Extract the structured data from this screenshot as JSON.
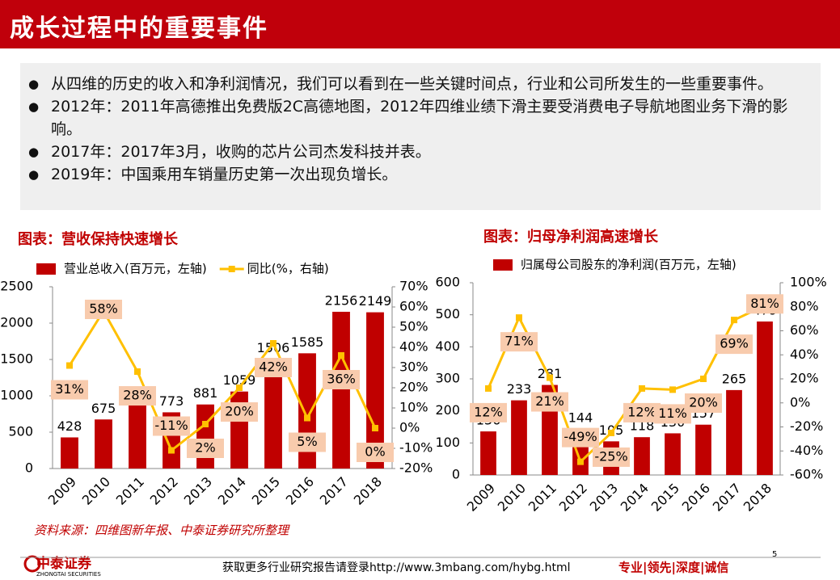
{
  "header": {
    "title": "成长过程中的重要事件"
  },
  "bullets": [
    "从四维的历史的收入和净利润情况，我们可以看到在一些关键时间点，行业和公司所发生的一些重要事件。",
    "2012年：2011年高德推出免费版2C高德地图，2012年四维业绩下滑主要受消费电子导航地图业务下滑的影响。",
    "2017年：2017年3月，收购的芯片公司杰发科技并表。",
    "2019年：中国乘用车销量历史第一次出现负增长。"
  ],
  "chart_data": [
    {
      "type": "bar-line",
      "title": "图表：营收保持快速增长",
      "categories": [
        "2009",
        "2010",
        "2011",
        "2012",
        "2013",
        "2014",
        "2015",
        "2016",
        "2017",
        "2018"
      ],
      "series": [
        {
          "name": "营业总收入(百万元，左轴)",
          "color": "#c00000",
          "values": [
            428,
            675,
            867,
            773,
            881,
            1059,
            1506,
            1585,
            2156,
            2149
          ]
        },
        {
          "name": "同比(%，右轴)",
          "color": "#ffc000",
          "axis": "y2",
          "values": [
            31,
            58,
            28,
            -11,
            2,
            20,
            42,
            5,
            36,
            0
          ],
          "value_labels": [
            "31%",
            "58%",
            "28%",
            "-11%",
            "2%",
            "20%",
            "42%",
            "5%",
            "36%",
            "0%"
          ]
        }
      ],
      "ylim": [
        0,
        2500
      ],
      "yticks": [
        0,
        500,
        1000,
        1500,
        2000,
        2500
      ],
      "y2lim": [
        -20,
        70
      ],
      "y2ticks": [
        {
          "value": -20,
          "label": "-20%"
        },
        {
          "value": -10,
          "label": "-10%"
        },
        {
          "value": 0,
          "label": "0%"
        },
        {
          "value": 10,
          "label": "10%"
        },
        {
          "value": 20,
          "label": "20%"
        },
        {
          "value": 30,
          "label": "30%"
        },
        {
          "value": 40,
          "label": "40%"
        },
        {
          "value": 50,
          "label": "50%"
        },
        {
          "value": 60,
          "label": "60%"
        },
        {
          "value": 70,
          "label": "70%"
        }
      ]
    },
    {
      "type": "bar-line",
      "title": "图表：归母净利润高速增长",
      "categories": [
        "2009",
        "2010",
        "2011",
        "2012",
        "2013",
        "2014",
        "2015",
        "2016",
        "2017",
        "2018"
      ],
      "series": [
        {
          "name": "归属母公司股东的净利润(百万元，左轴)",
          "color": "#c00000",
          "values": [
            136,
            233,
            281,
            144,
            105,
            118,
            130,
            157,
            265,
            479
          ]
        },
        {
          "color": "#ffc000",
          "axis": "y2",
          "values": [
            12,
            71,
            21,
            -49,
            -25,
            12,
            11,
            20,
            69,
            81
          ],
          "value_labels": [
            "12%",
            "71%",
            "21%",
            "-49%",
            "-25%",
            "12%",
            "11%",
            "20%",
            "69%",
            "81%"
          ]
        }
      ],
      "ylim": [
        0,
        600
      ],
      "yticks": [
        0,
        100,
        200,
        300,
        400,
        500,
        600
      ],
      "y2lim": [
        -60,
        100
      ],
      "y2ticks": [
        {
          "value": -60,
          "label": "-60%"
        },
        {
          "value": -40,
          "label": "-40%"
        },
        {
          "value": -20,
          "label": "-20%"
        },
        {
          "value": 0,
          "label": "0%"
        },
        {
          "value": 20,
          "label": "20%"
        },
        {
          "value": 40,
          "label": "40%"
        },
        {
          "value": 60,
          "label": "60%"
        },
        {
          "value": 80,
          "label": "80%"
        },
        {
          "value": 100,
          "label": "100%"
        }
      ]
    }
  ],
  "source": "资料来源：四维图新年报、中泰证券研究所整理",
  "footer": {
    "logo": "中泰证券",
    "logo_en": "ZHONGTAI SECURITIES",
    "link": "获取更多行业研究报告请登录http://www.3mbang.com/hybg.html",
    "motto": "专业|领先|深度|诚信",
    "page": 5
  }
}
